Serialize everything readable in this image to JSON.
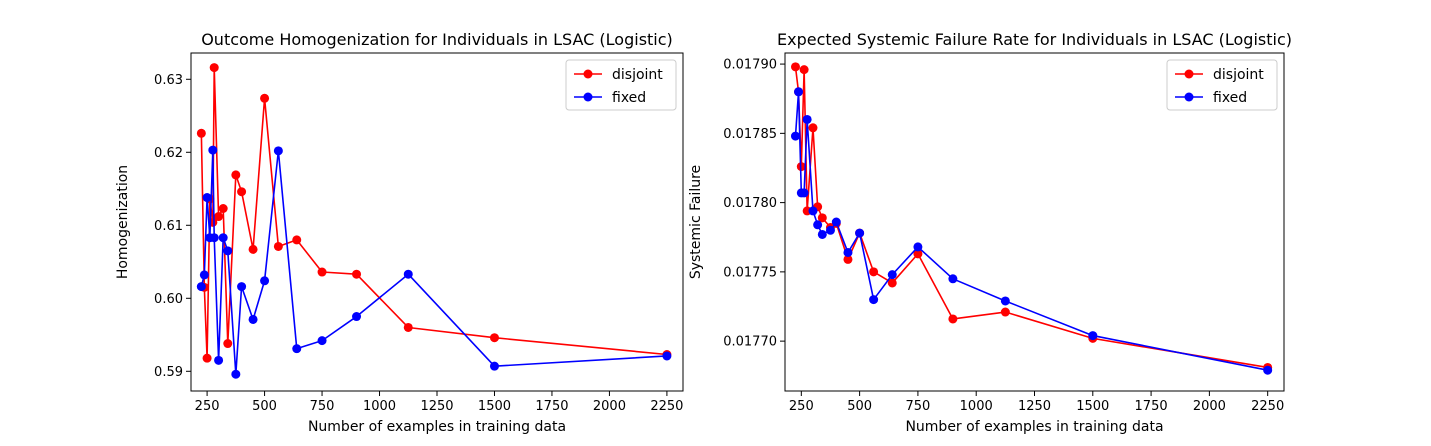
{
  "chart_data": [
    {
      "type": "line",
      "title": "Outcome Homogenization for Individuals in LSAC (Logistic)",
      "xlabel": "Number of examples in training data",
      "ylabel": "Homogenization",
      "xlim": [
        180,
        2320
      ],
      "ylim": [
        0.5873,
        0.6336
      ],
      "xticks": [
        250,
        500,
        750,
        1000,
        1250,
        1500,
        1750,
        2000,
        2250
      ],
      "xtick_labels": [
        "250",
        "500",
        "750",
        "1000",
        "1250",
        "1500",
        "1750",
        "2000",
        "2250"
      ],
      "yticks": [
        0.59,
        0.6,
        0.61,
        0.62,
        0.63
      ],
      "ytick_labels": [
        "0.59",
        "0.60",
        "0.61",
        "0.62",
        "0.63"
      ],
      "legend_position": "top-right",
      "series": [
        {
          "name": "disjoint",
          "color": "#ff0000",
          "x": [
            225,
            238,
            250,
            262,
            275,
            281,
            300,
            320,
            340,
            375,
            400,
            450,
            500,
            560,
            640,
            750,
            900,
            1125,
            1500,
            2250
          ],
          "y": [
            0.6226,
            0.6015,
            0.5918,
            0.6136,
            0.6104,
            0.6316,
            0.6112,
            0.6123,
            0.5938,
            0.6169,
            0.6146,
            0.6067,
            0.6274,
            0.6071,
            0.608,
            0.6036,
            0.6033,
            0.596,
            0.5946,
            0.5923
          ]
        },
        {
          "name": "fixed",
          "color": "#0000ff",
          "x": [
            225,
            238,
            250,
            262,
            275,
            281,
            300,
            320,
            340,
            375,
            400,
            450,
            500,
            560,
            640,
            750,
            900,
            1125,
            1500,
            2250
          ],
          "y": [
            0.6016,
            0.6032,
            0.6138,
            0.6083,
            0.6203,
            0.6083,
            0.5915,
            0.6083,
            0.6065,
            0.5896,
            0.6016,
            0.5971,
            0.6024,
            0.6202,
            0.5931,
            0.5942,
            0.5975,
            0.6033,
            0.5907,
            0.5921
          ]
        }
      ]
    },
    {
      "type": "line",
      "title": "Expected Systemic Failure Rate for Individuals in LSAC (Logistic)",
      "xlabel": "Number of examples in training data",
      "ylabel": "Systemic Failure",
      "xlim": [
        180,
        2320
      ],
      "ylim": [
        0.017664,
        0.017908
      ],
      "xticks": [
        250,
        500,
        750,
        1000,
        1250,
        1500,
        1750,
        2000,
        2250
      ],
      "xtick_labels": [
        "250",
        "500",
        "750",
        "1000",
        "1250",
        "1500",
        "1750",
        "2000",
        "2250"
      ],
      "yticks": [
        0.0177,
        0.01775,
        0.0178,
        0.01785,
        0.0179
      ],
      "ytick_labels": [
        "0.01770",
        "0.01775",
        "0.01780",
        "0.01785",
        "0.01790"
      ],
      "legend_position": "top-right",
      "series": [
        {
          "name": "disjoint",
          "color": "#ff0000",
          "x": [
            225,
            238,
            250,
            262,
            275,
            300,
            320,
            340,
            375,
            400,
            450,
            500,
            560,
            640,
            750,
            900,
            1125,
            1500,
            2250
          ],
          "y": [
            0.017898,
            0.01788,
            0.017826,
            0.017896,
            0.017794,
            0.017854,
            0.017797,
            0.017789,
            0.017782,
            0.017785,
            0.017759,
            0.017778,
            0.01775,
            0.017742,
            0.017763,
            0.017716,
            0.017721,
            0.017702,
            0.017681
          ]
        },
        {
          "name": "fixed",
          "color": "#0000ff",
          "x": [
            225,
            238,
            250,
            262,
            275,
            300,
            320,
            340,
            375,
            400,
            450,
            500,
            560,
            640,
            750,
            900,
            1125,
            1500,
            2250
          ],
          "y": [
            0.017848,
            0.01788,
            0.017807,
            0.017807,
            0.01786,
            0.017794,
            0.017784,
            0.017777,
            0.01778,
            0.017786,
            0.017764,
            0.017778,
            0.01773,
            0.017748,
            0.017768,
            0.017745,
            0.017729,
            0.017704,
            0.017679
          ]
        }
      ]
    }
  ]
}
